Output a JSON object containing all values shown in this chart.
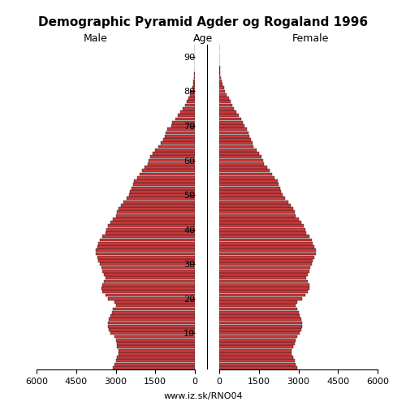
{
  "title": "Demographic Pyramid Agder og Rogaland 1996",
  "label_male": "Male",
  "label_female": "Female",
  "label_age": "Age",
  "footer": "www.iz.sk/RNO04",
  "xlim": 6000,
  "bar_color_main": "#C8393B",
  "bar_color_dark": "#1A1A1A",
  "male": [
    3100,
    3050,
    3000,
    2950,
    2900,
    2900,
    2950,
    2950,
    3000,
    3050,
    3200,
    3250,
    3300,
    3300,
    3250,
    3200,
    3150,
    3100,
    3000,
    3050,
    3300,
    3400,
    3500,
    3550,
    3500,
    3450,
    3400,
    3450,
    3500,
    3550,
    3600,
    3650,
    3700,
    3750,
    3750,
    3700,
    3650,
    3600,
    3500,
    3400,
    3350,
    3300,
    3200,
    3100,
    3000,
    2950,
    2900,
    2800,
    2700,
    2600,
    2500,
    2450,
    2400,
    2350,
    2300,
    2200,
    2100,
    2000,
    1900,
    1800,
    1750,
    1700,
    1600,
    1500,
    1400,
    1300,
    1200,
    1150,
    1100,
    1050,
    900,
    850,
    750,
    650,
    550,
    450,
    380,
    310,
    250,
    200,
    150,
    100,
    70,
    50,
    35,
    25,
    15,
    10,
    6,
    3,
    2,
    1,
    1,
    0
  ],
  "female": [
    2950,
    2900,
    2850,
    2800,
    2750,
    2750,
    2800,
    2850,
    2900,
    2950,
    3050,
    3100,
    3150,
    3150,
    3100,
    3050,
    3000,
    2950,
    2900,
    2950,
    3150,
    3250,
    3350,
    3400,
    3400,
    3350,
    3300,
    3350,
    3400,
    3450,
    3500,
    3550,
    3600,
    3650,
    3650,
    3600,
    3550,
    3500,
    3400,
    3300,
    3250,
    3200,
    3100,
    3000,
    2900,
    2850,
    2800,
    2700,
    2600,
    2500,
    2400,
    2350,
    2300,
    2250,
    2200,
    2100,
    2000,
    1900,
    1800,
    1700,
    1650,
    1600,
    1500,
    1400,
    1300,
    1250,
    1200,
    1150,
    1100,
    1050,
    950,
    900,
    820,
    730,
    640,
    560,
    500,
    430,
    360,
    290,
    230,
    170,
    120,
    90,
    65,
    45,
    30,
    20,
    13,
    8,
    5,
    3,
    1,
    0
  ]
}
